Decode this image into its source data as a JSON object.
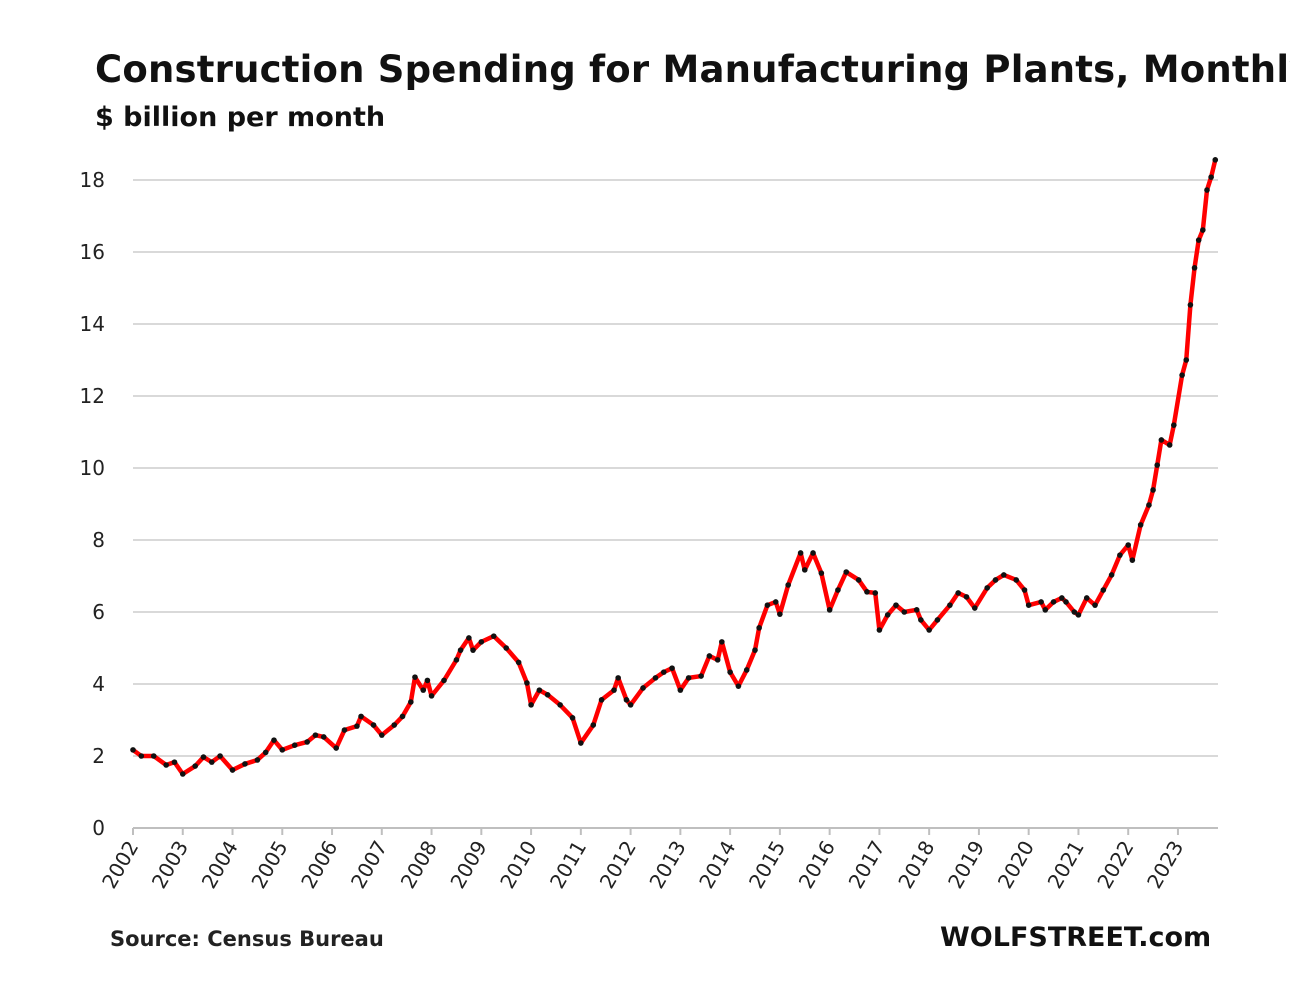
{
  "chart_data": {
    "type": "line",
    "title": "Construction  Spending  for Manufacturing  Plants,  Monthly",
    "subtitle": "$ billion per month",
    "ylabel": "",
    "xlabel": "",
    "ylim": [
      0,
      18
    ],
    "yticks": [
      "0",
      "2",
      "4",
      "6",
      "8",
      "10",
      "12",
      "14",
      "16",
      "18"
    ],
    "xticks": [
      "2002",
      "2003",
      "2004",
      "2005",
      "2006",
      "2007",
      "2008",
      "2009",
      "2010",
      "2011",
      "2012",
      "2013",
      "2014",
      "2015",
      "2016",
      "2017",
      "2018",
      "2019",
      "2020",
      "2021",
      "2022",
      "2023"
    ],
    "grid": "horizontal",
    "legend": "none",
    "line_color": "#ff0000",
    "marker_color": "#111111",
    "series": [
      {
        "points": [
          [
            "2002-01",
            2.17
          ],
          [
            "2002-03",
            2.0
          ],
          [
            "2002-06",
            2.0
          ],
          [
            "2002-09",
            1.75
          ],
          [
            "2002-11",
            1.83
          ],
          [
            "2003-01",
            1.5
          ],
          [
            "2003-04",
            1.72
          ],
          [
            "2003-06",
            1.97
          ],
          [
            "2003-08",
            1.83
          ],
          [
            "2003-10",
            2.0
          ],
          [
            "2004-01",
            1.61
          ],
          [
            "2004-04",
            1.78
          ],
          [
            "2004-07",
            1.89
          ],
          [
            "2004-09",
            2.1
          ],
          [
            "2004-11",
            2.44
          ],
          [
            "2005-01",
            2.17
          ],
          [
            "2005-04",
            2.3
          ],
          [
            "2005-07",
            2.39
          ],
          [
            "2005-09",
            2.58
          ],
          [
            "2005-11",
            2.53
          ],
          [
            "2006-02",
            2.22
          ],
          [
            "2006-04",
            2.72
          ],
          [
            "2006-07",
            2.83
          ],
          [
            "2006-08",
            3.1
          ],
          [
            "2006-11",
            2.86
          ],
          [
            "2007-01",
            2.58
          ],
          [
            "2007-04",
            2.86
          ],
          [
            "2007-06",
            3.1
          ],
          [
            "2007-08",
            3.5
          ],
          [
            "2007-09",
            4.19
          ],
          [
            "2007-11",
            3.83
          ],
          [
            "2007-12",
            4.1
          ],
          [
            "2008-01",
            3.67
          ],
          [
            "2008-04",
            4.1
          ],
          [
            "2008-07",
            4.67
          ],
          [
            "2008-08",
            4.94
          ],
          [
            "2008-10",
            5.28
          ],
          [
            "2008-11",
            4.94
          ],
          [
            "2009-01",
            5.17
          ],
          [
            "2009-04",
            5.33
          ],
          [
            "2009-07",
            5.0
          ],
          [
            "2009-10",
            4.6
          ],
          [
            "2009-12",
            4.03
          ],
          [
            "2010-01",
            3.42
          ],
          [
            "2010-03",
            3.83
          ],
          [
            "2010-05",
            3.7
          ],
          [
            "2010-08",
            3.42
          ],
          [
            "2010-11",
            3.06
          ],
          [
            "2011-01",
            2.36
          ],
          [
            "2011-04",
            2.86
          ],
          [
            "2011-06",
            3.56
          ],
          [
            "2011-09",
            3.83
          ],
          [
            "2011-10",
            4.17
          ],
          [
            "2011-12",
            3.56
          ],
          [
            "2012-01",
            3.42
          ],
          [
            "2012-04",
            3.89
          ],
          [
            "2012-07",
            4.17
          ],
          [
            "2012-09",
            4.33
          ],
          [
            "2012-11",
            4.44
          ],
          [
            "2013-01",
            3.83
          ],
          [
            "2013-03",
            4.17
          ],
          [
            "2013-06",
            4.22
          ],
          [
            "2013-08",
            4.78
          ],
          [
            "2013-10",
            4.67
          ],
          [
            "2013-11",
            5.17
          ],
          [
            "2014-01",
            4.33
          ],
          [
            "2014-03",
            3.94
          ],
          [
            "2014-05",
            4.39
          ],
          [
            "2014-07",
            4.94
          ],
          [
            "2014-08",
            5.56
          ],
          [
            "2014-10",
            6.19
          ],
          [
            "2014-12",
            6.28
          ],
          [
            "2015-01",
            5.94
          ],
          [
            "2015-03",
            6.75
          ],
          [
            "2015-06",
            7.64
          ],
          [
            "2015-07",
            7.17
          ],
          [
            "2015-09",
            7.64
          ],
          [
            "2015-11",
            7.08
          ],
          [
            "2016-01",
            6.06
          ],
          [
            "2016-03",
            6.61
          ],
          [
            "2016-05",
            7.11
          ],
          [
            "2016-08",
            6.89
          ],
          [
            "2016-10",
            6.56
          ],
          [
            "2016-12",
            6.53
          ],
          [
            "2017-01",
            5.5
          ],
          [
            "2017-03",
            5.92
          ],
          [
            "2017-05",
            6.19
          ],
          [
            "2017-07",
            6.0
          ],
          [
            "2017-10",
            6.06
          ],
          [
            "2017-11",
            5.78
          ],
          [
            "2018-01",
            5.5
          ],
          [
            "2018-03",
            5.78
          ],
          [
            "2018-06",
            6.19
          ],
          [
            "2018-08",
            6.53
          ],
          [
            "2018-10",
            6.42
          ],
          [
            "2018-12",
            6.11
          ],
          [
            "2019-03",
            6.67
          ],
          [
            "2019-05",
            6.89
          ],
          [
            "2019-07",
            7.03
          ],
          [
            "2019-10",
            6.89
          ],
          [
            "2019-12",
            6.61
          ],
          [
            "2020-01",
            6.19
          ],
          [
            "2020-04",
            6.28
          ],
          [
            "2020-05",
            6.06
          ],
          [
            "2020-07",
            6.28
          ],
          [
            "2020-09",
            6.39
          ],
          [
            "2020-10",
            6.28
          ],
          [
            "2020-12",
            6.0
          ],
          [
            "2021-01",
            5.92
          ],
          [
            "2021-03",
            6.39
          ],
          [
            "2021-05",
            6.19
          ],
          [
            "2021-07",
            6.61
          ],
          [
            "2021-09",
            7.03
          ],
          [
            "2021-11",
            7.58
          ],
          [
            "2022-01",
            7.86
          ],
          [
            "2022-02",
            7.44
          ],
          [
            "2022-04",
            8.42
          ],
          [
            "2022-06",
            8.97
          ],
          [
            "2022-07",
            9.39
          ],
          [
            "2022-08",
            10.08
          ],
          [
            "2022-09",
            10.78
          ],
          [
            "2022-11",
            10.64
          ],
          [
            "2022-12",
            11.19
          ],
          [
            "2023-02",
            12.58
          ],
          [
            "2023-03",
            13.0
          ],
          [
            "2023-04",
            14.53
          ],
          [
            "2023-05",
            15.56
          ],
          [
            "2023-06",
            16.33
          ],
          [
            "2023-07",
            16.61
          ],
          [
            "2023-08",
            17.72
          ],
          [
            "2023-09",
            18.08
          ],
          [
            "2023-10",
            18.56
          ]
        ]
      }
    ]
  },
  "footer": {
    "source": "Source: Census Bureau",
    "brand": "WOLFSTREET.com"
  }
}
